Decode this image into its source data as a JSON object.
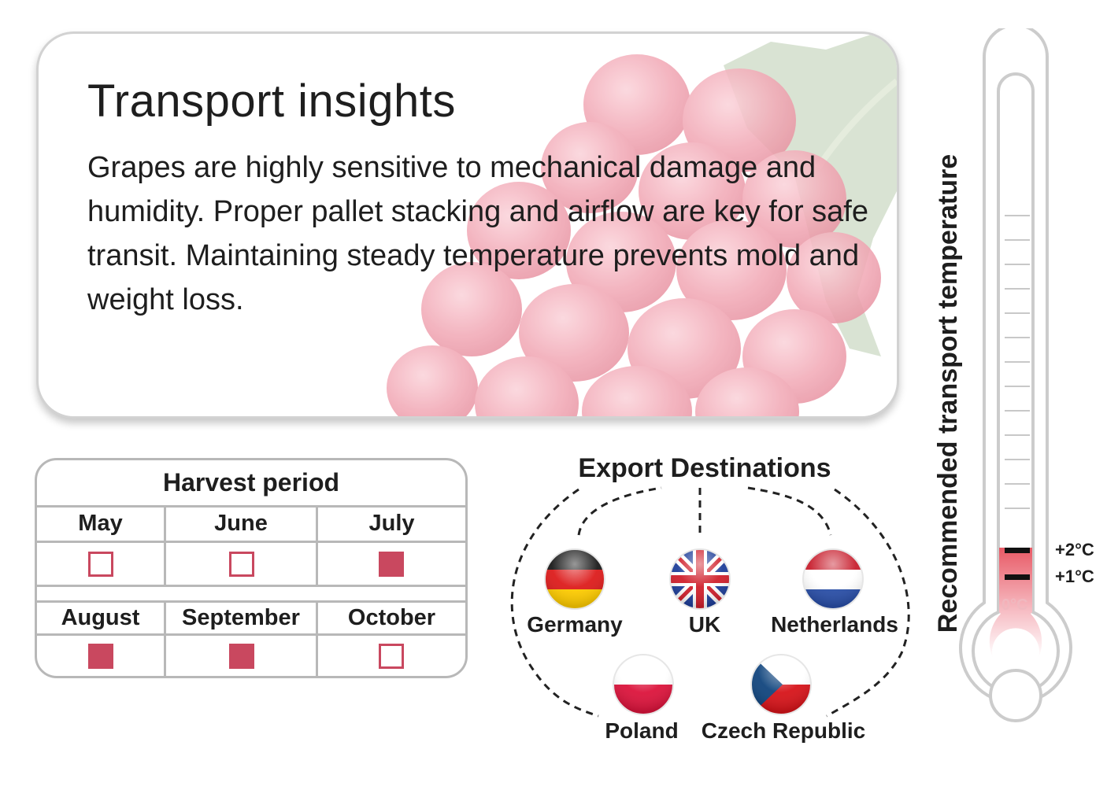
{
  "insights": {
    "title": "Transport insights",
    "body": "Grapes are highly sensitive to mechanical damage and humidity. Proper pallet stacking and airflow are key for safe transit. Maintaining steady temperature prevents mold and weight loss."
  },
  "harvest": {
    "title": "Harvest period",
    "months": [
      {
        "label": "May",
        "in_season": false
      },
      {
        "label": "June",
        "in_season": false
      },
      {
        "label": "July",
        "in_season": true
      },
      {
        "label": "August",
        "in_season": true
      },
      {
        "label": "September",
        "in_season": true
      },
      {
        "label": "October",
        "in_season": false
      }
    ]
  },
  "exports": {
    "title": "Export Destinations",
    "countries": [
      {
        "name": "Germany",
        "flag": "germany-flag-icon"
      },
      {
        "name": "UK",
        "flag": "uk-flag-icon"
      },
      {
        "name": "Netherlands",
        "flag": "netherlands-flag-icon"
      },
      {
        "name": "Poland",
        "flag": "poland-flag-icon"
      },
      {
        "name": "Czech Republic",
        "flag": "czech-flag-icon"
      }
    ]
  },
  "thermometer": {
    "title": "Recommended transport temperature",
    "max_label": "+2°C",
    "min_label": "+1°C",
    "zero_label": "0°C",
    "range_c": [
      1,
      2
    ]
  },
  "colors": {
    "accent": "#c9485f",
    "grape": "#f2a9b6",
    "thermo_fill": "#e85a66"
  }
}
